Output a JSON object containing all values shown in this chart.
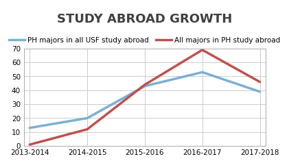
{
  "title": "STUDY ABROAD GROWTH",
  "x_labels": [
    "2013-2014",
    "2014-2015",
    "2015-2016",
    "2016-2017",
    "2017-2018"
  ],
  "series": [
    {
      "label": "PH majors in all USF study abroad",
      "values": [
        13,
        20,
        43,
        53,
        39
      ],
      "color": "#7bafd4",
      "linewidth": 2.5
    },
    {
      "label": "All majors in PH study abroad",
      "values": [
        1,
        12,
        44,
        69,
        46
      ],
      "color": "#c0504d",
      "linewidth": 2.5
    }
  ],
  "ylim": [
    0,
    70
  ],
  "yticks": [
    0,
    10,
    20,
    30,
    40,
    50,
    60,
    70
  ],
  "background_color": "#ffffff",
  "plot_bg_color": "#ffffff",
  "grid_color": "#cccccc",
  "title_fontsize": 13,
  "legend_fontsize": 7.5,
  "tick_fontsize": 7.5,
  "title_color": "#404040"
}
